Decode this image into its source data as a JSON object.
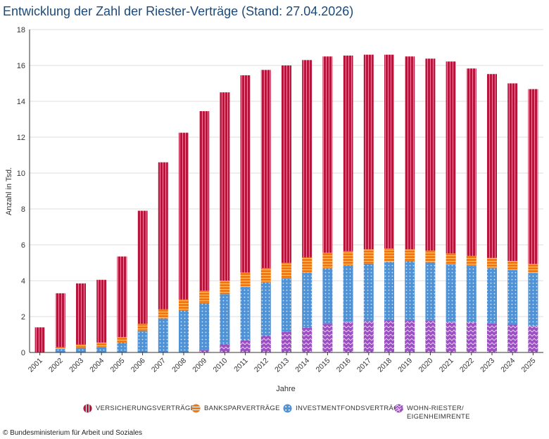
{
  "colors": {
    "versicherung": "#b7163c",
    "bankspar": "#ec7a16",
    "investment": "#4f93d6",
    "wohn": "#9b4fc2",
    "title": "#1b4a7a"
  },
  "legend": [
    {
      "key": "versicherung",
      "label": "VERSICHERUNGSVERTRÄGE",
      "icon": "striped-circle"
    },
    {
      "key": "bankspar",
      "label": "BANKSPARVERTRÄGE",
      "icon": "striped-circle"
    },
    {
      "key": "investment",
      "label": "INVESTMENTFONDSVERTRÄGE",
      "icon": "dotted-circle"
    },
    {
      "key": "wohn",
      "label": "WOHN-RIESTER/\nEIGENHEIMRENTE",
      "icon": "zigzag-circle"
    }
  ],
  "copyright": "© Bundesministerium für Arbeit und Soziales",
  "chart_data": {
    "type": "bar",
    "stacked": true,
    "title": "Entwicklung der Zahl der Riester-Verträge (Stand: 27.04.2026)",
    "xlabel": "Jahre",
    "ylabel": "Anzahl in Tsd.",
    "ylim": [
      0,
      18
    ],
    "yticks": [
      0,
      2,
      4,
      6,
      8,
      10,
      12,
      14,
      16,
      18
    ],
    "grid": true,
    "legend_position": "bottom",
    "categories": [
      "2001",
      "2002",
      "2003",
      "2004",
      "2005",
      "2006",
      "2007",
      "2008",
      "2009",
      "2010",
      "2011",
      "2012",
      "2013",
      "2014",
      "2015",
      "2016",
      "2017",
      "2018",
      "2019",
      "2020",
      "2021",
      "2022",
      "2023",
      "2024",
      "2025"
    ],
    "series": [
      {
        "name": "WOHN-RIESTER/ EIGENHEIMRENTE",
        "key": "wohn",
        "values": [
          0,
          0,
          0,
          0,
          0,
          0,
          0,
          0,
          0.15,
          0.45,
          0.7,
          0.95,
          1.15,
          1.4,
          1.6,
          1.7,
          1.75,
          1.8,
          1.8,
          1.78,
          1.72,
          1.68,
          1.62,
          1.55,
          1.48
        ]
      },
      {
        "name": "INVESTMENTFONDSVERTRÄGE",
        "key": "investment",
        "values": [
          0,
          0.2,
          0.25,
          0.3,
          0.55,
          1.2,
          1.9,
          2.35,
          2.6,
          2.8,
          2.95,
          2.95,
          3.0,
          3.05,
          3.1,
          3.15,
          3.2,
          3.25,
          3.3,
          3.25,
          3.2,
          3.15,
          3.1,
          3.05,
          2.95
        ]
      },
      {
        "name": "BANKSPARVERTRÄGE",
        "key": "bankspar",
        "values": [
          0,
          0.1,
          0.2,
          0.25,
          0.3,
          0.4,
          0.5,
          0.6,
          0.7,
          0.75,
          0.8,
          0.8,
          0.85,
          0.85,
          0.85,
          0.8,
          0.8,
          0.75,
          0.65,
          0.65,
          0.6,
          0.55,
          0.55,
          0.5,
          0.5
        ]
      },
      {
        "name": "VERSICHERUNGSVERTRÄGE",
        "key": "versicherung",
        "values": [
          1.4,
          3.0,
          3.4,
          3.5,
          4.5,
          6.3,
          8.2,
          9.3,
          10.0,
          10.5,
          11.0,
          11.05,
          11.0,
          11.0,
          10.95,
          10.9,
          10.85,
          10.8,
          10.75,
          10.7,
          10.7,
          10.45,
          10.25,
          9.9,
          9.75
        ]
      }
    ]
  }
}
